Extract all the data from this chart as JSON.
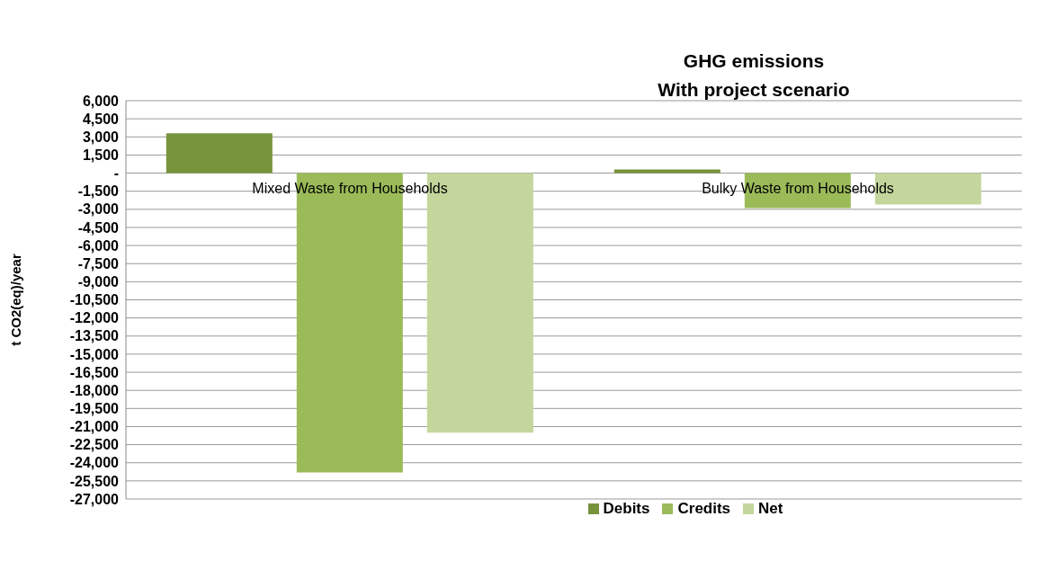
{
  "chart_data": {
    "type": "bar",
    "title": "GHG emissions\nWith project scenario",
    "ylabel": "t CO2(eq)/year",
    "categories": [
      "Mixed Waste from Households",
      "Bulky Waste from Households"
    ],
    "series": [
      {
        "name": "Debits",
        "color": "#77933c",
        "values": [
          3300,
          300
        ]
      },
      {
        "name": "Credits",
        "color": "#9bbb59",
        "values": [
          -24800,
          -2900
        ]
      },
      {
        "name": "Net",
        "color": "#c3d69b",
        "values": [
          -21500,
          -2600
        ]
      }
    ],
    "ylim": [
      -27000,
      6000
    ],
    "yticks": [
      {
        "value": 6000,
        "label": "6,000"
      },
      {
        "value": 4500,
        "label": "4,500"
      },
      {
        "value": 3000,
        "label": "3,000"
      },
      {
        "value": 1500,
        "label": "1,500"
      },
      {
        "value": 0,
        "label": "-"
      },
      {
        "value": -1500,
        "label": "-1,500"
      },
      {
        "value": -3000,
        "label": "-3,000"
      },
      {
        "value": -4500,
        "label": "-4,500"
      },
      {
        "value": -6000,
        "label": "-6,000"
      },
      {
        "value": -7500,
        "label": "-7,500"
      },
      {
        "value": -9000,
        "label": "-9,000"
      },
      {
        "value": -10500,
        "label": "-10,500"
      },
      {
        "value": -12000,
        "label": "-12,000"
      },
      {
        "value": -13500,
        "label": "-13,500"
      },
      {
        "value": -15000,
        "label": "-15,000"
      },
      {
        "value": -16500,
        "label": "-16,500"
      },
      {
        "value": -18000,
        "label": "-18,000"
      },
      {
        "value": -19500,
        "label": "-19,500"
      },
      {
        "value": -21000,
        "label": "-21,000"
      },
      {
        "value": -22500,
        "label": "-22,500"
      },
      {
        "value": -24000,
        "label": "-24,000"
      },
      {
        "value": -25500,
        "label": "-25,500"
      },
      {
        "value": -27000,
        "label": "-27,000"
      }
    ],
    "grid": "y",
    "legend": "bottom"
  }
}
